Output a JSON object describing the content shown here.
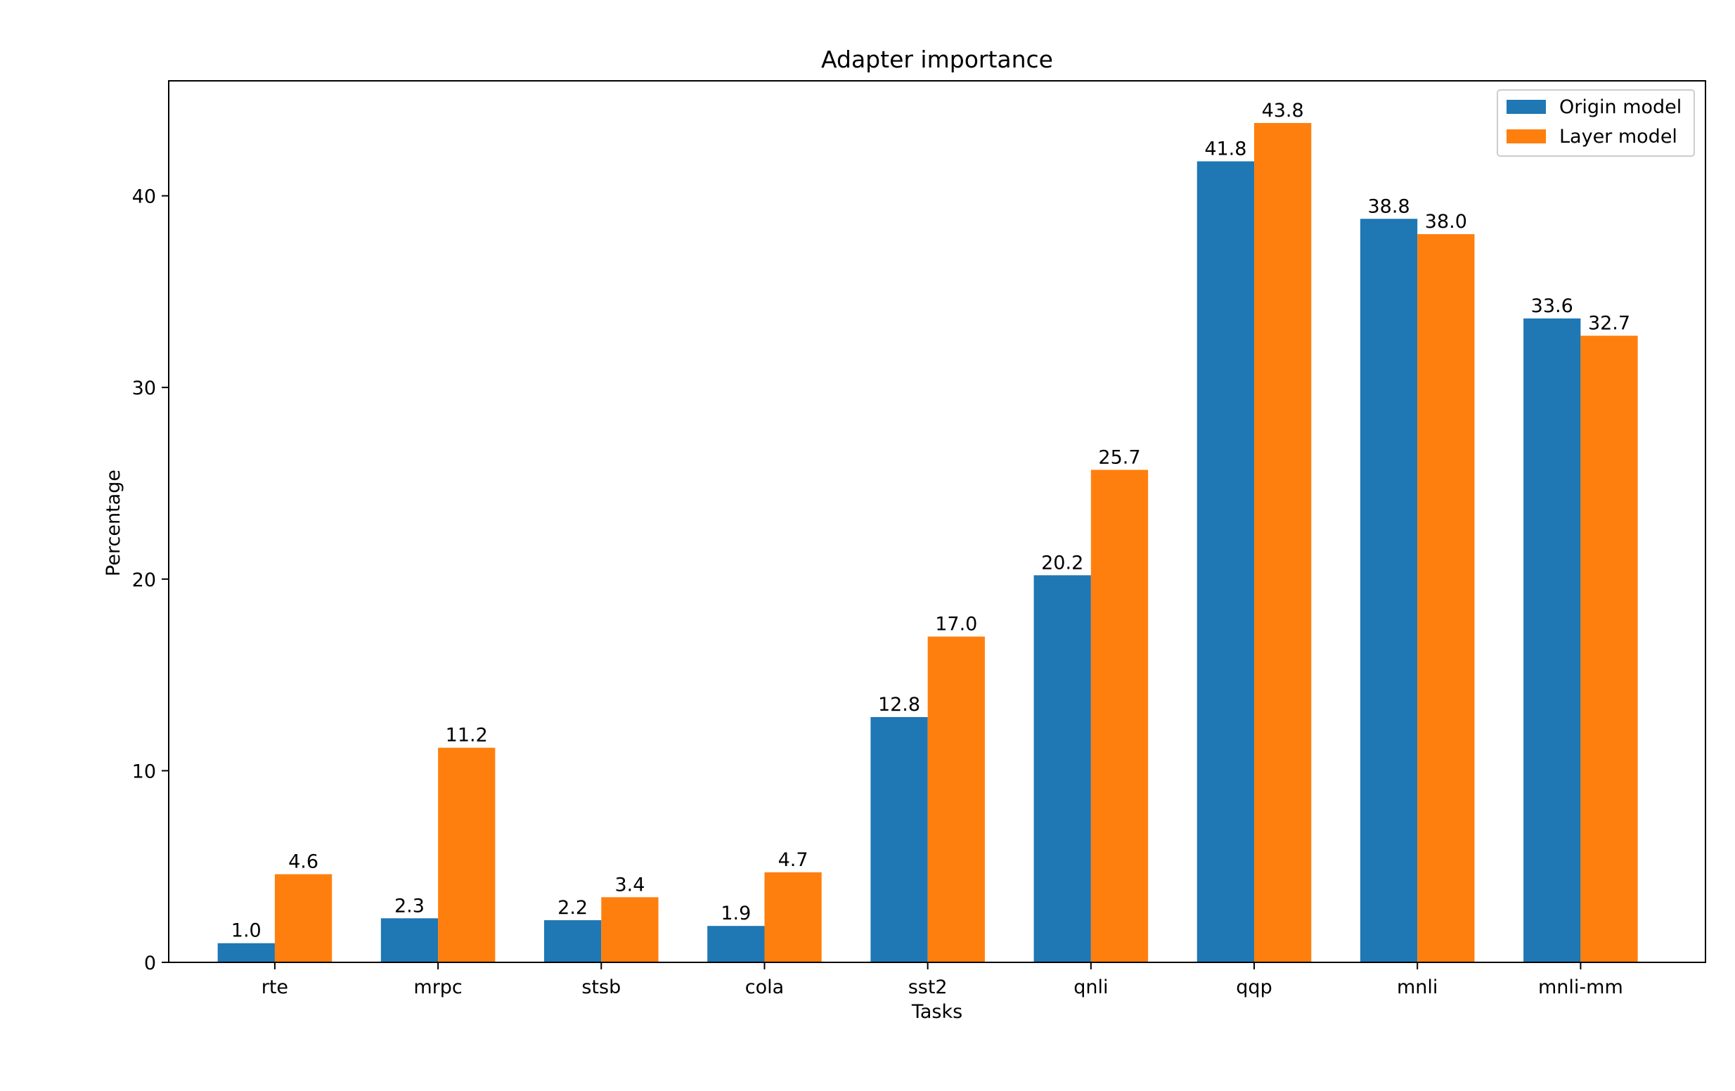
{
  "chart_data": {
    "type": "bar",
    "title": "Adapter importance",
    "xlabel": "Tasks",
    "ylabel": "Percentage",
    "categories": [
      "rte",
      "mrpc",
      "stsb",
      "cola",
      "sst2",
      "qnli",
      "qqp",
      "mnli",
      "mnli-mm"
    ],
    "series": [
      {
        "name": "Origin model",
        "color": "#1f77b4",
        "values": [
          1.0,
          2.3,
          2.2,
          1.9,
          12.8,
          20.2,
          41.8,
          38.8,
          33.6
        ],
        "labels": [
          "1.0",
          "2.3",
          "2.2",
          "1.9",
          "12.8",
          "20.2",
          "41.8",
          "38.8",
          "33.6"
        ]
      },
      {
        "name": "Layer model",
        "color": "#ff7f0e",
        "values": [
          4.6,
          11.2,
          3.4,
          4.7,
          17.0,
          25.7,
          43.8,
          38.0,
          32.7
        ],
        "labels": [
          "4.6",
          "11.2",
          "3.4",
          "4.7",
          "17.0",
          "25.7",
          "43.8",
          "38.0",
          "32.7"
        ]
      }
    ],
    "ylim": [
      0,
      46
    ],
    "yticks": [
      0,
      10,
      20,
      30,
      40
    ],
    "ytick_labels": [
      "0",
      "10",
      "20",
      "30",
      "40"
    ],
    "grid": false,
    "legend_position": "upper right"
  }
}
